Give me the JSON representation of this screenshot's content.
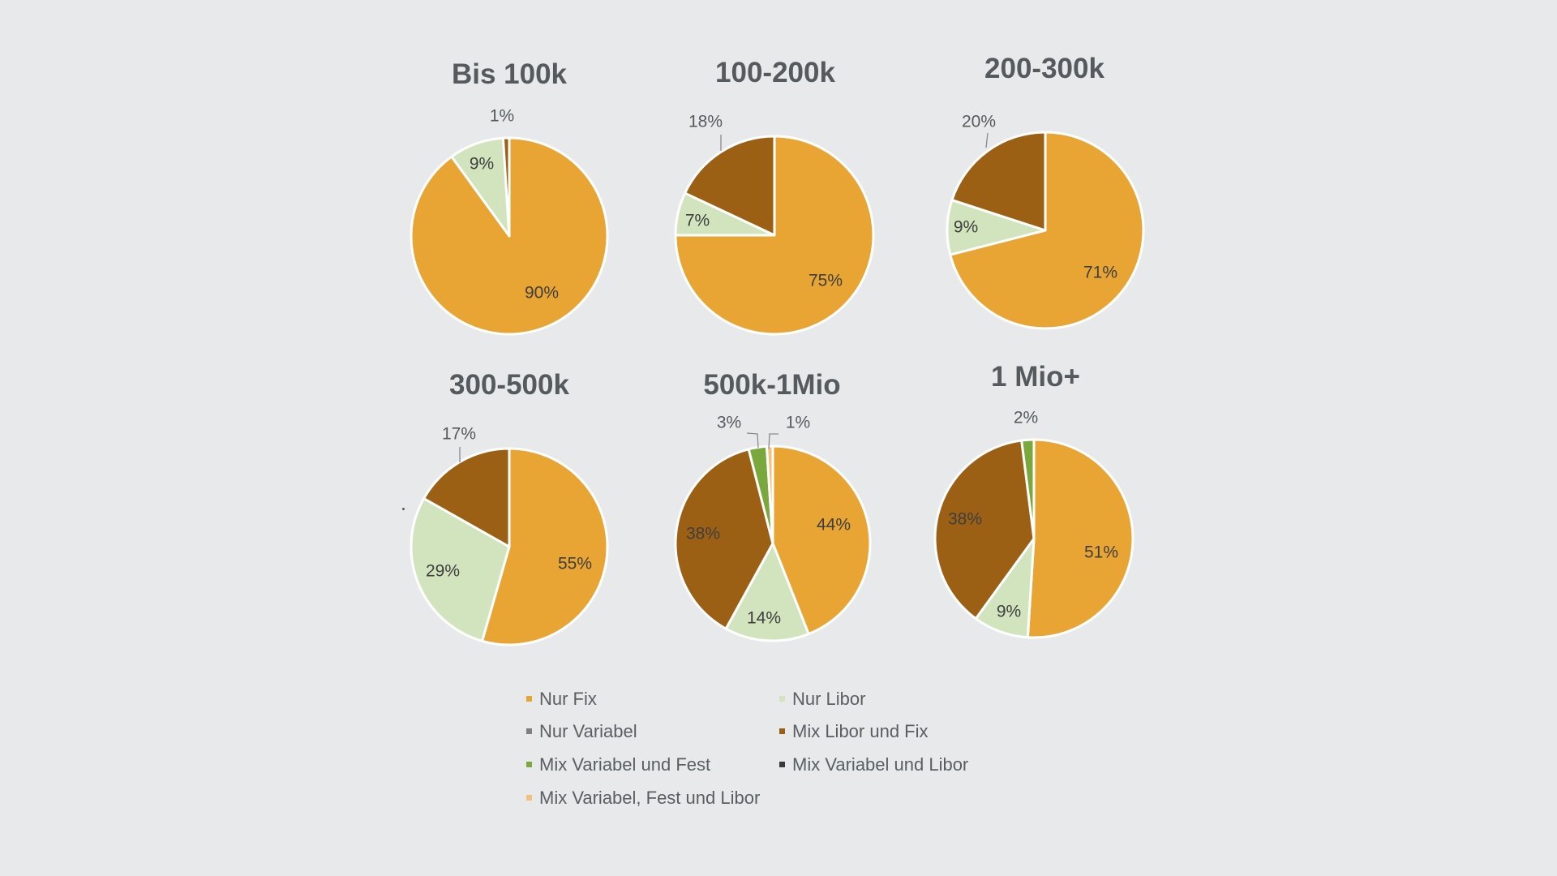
{
  "chart_data": {
    "type": "pie",
    "colors": {
      "Nur Fix": "#e8a534",
      "Nur Libor": "#d2e4bd",
      "Nur Variabel": "#7f7f7f",
      "Mix Libor und Fix": "#9c6015",
      "Mix Variabel und Fest": "#7aa83c",
      "Mix Variabel und Libor": "#3a3a3a",
      "Mix Variabel, Fest und Libor": "#f0c27e"
    },
    "legend": [
      "Nur Fix",
      "Nur Libor",
      "Nur Variabel",
      "Mix Libor und Fix",
      "Mix Variabel und Fest",
      "Mix Variabel und Libor",
      "Mix Variabel, Fest und Libor"
    ],
    "charts": [
      {
        "title": "Bis 100k",
        "slices": [
          {
            "category": "Nur Fix",
            "value": 90,
            "label": "90%"
          },
          {
            "category": "Nur Libor",
            "value": 9,
            "label": "9%"
          },
          {
            "category": "Mix Libor und Fix",
            "value": 1,
            "label": "1%"
          }
        ]
      },
      {
        "title": "100-200k",
        "slices": [
          {
            "category": "Nur Fix",
            "value": 75,
            "label": "75%"
          },
          {
            "category": "Nur Libor",
            "value": 7,
            "label": "7%"
          },
          {
            "category": "Mix Libor und Fix",
            "value": 18,
            "label": "18%"
          }
        ]
      },
      {
        "title": "200-300k",
        "slices": [
          {
            "category": "Nur Fix",
            "value": 71,
            "label": "71%"
          },
          {
            "category": "Nur Libor",
            "value": 9,
            "label": "9%"
          },
          {
            "category": "Mix Libor und Fix",
            "value": 20,
            "label": "20%"
          }
        ]
      },
      {
        "title": "300-500k",
        "slices": [
          {
            "category": "Nur Fix",
            "value": 55,
            "label": "55%"
          },
          {
            "category": "Nur Libor",
            "value": 29,
            "label": "29%"
          },
          {
            "category": "Mix Libor und Fix",
            "value": 17,
            "label": "17%"
          }
        ]
      },
      {
        "title": "500k-1Mio",
        "slices": [
          {
            "category": "Nur Fix",
            "value": 44,
            "label": "44%"
          },
          {
            "category": "Nur Libor",
            "value": 14,
            "label": "14%"
          },
          {
            "category": "Mix Libor und Fix",
            "value": 38,
            "label": "38%"
          },
          {
            "category": "Mix Variabel und Fest",
            "value": 3,
            "label": "3%"
          },
          {
            "category": "Mix Variabel, Fest und Libor",
            "value": 1,
            "label": "1%"
          }
        ]
      },
      {
        "title": "1 Mio+",
        "slices": [
          {
            "category": "Nur Fix",
            "value": 51,
            "label": "51%"
          },
          {
            "category": "Nur Libor",
            "value": 9,
            "label": "9%"
          },
          {
            "category": "Mix Libor und Fix",
            "value": 38,
            "label": "38%"
          },
          {
            "category": "Mix Variabel und Fest",
            "value": 2,
            "label": "2%"
          }
        ]
      }
    ]
  }
}
